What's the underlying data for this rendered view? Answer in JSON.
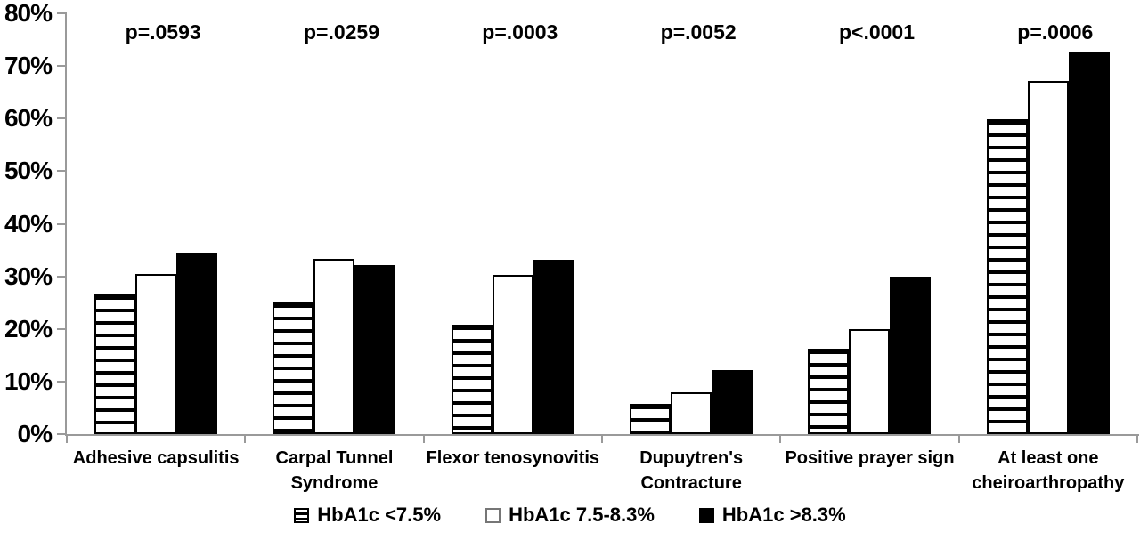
{
  "colors": {
    "background": "#ffffff",
    "text": "#000000",
    "axis": "#9a9a9a",
    "bar_black": "#000000",
    "bar_white": "#ffffff",
    "bar_stripe": "#000000"
  },
  "chart_data": {
    "type": "bar",
    "title": "",
    "xlabel": "",
    "ylabel": "",
    "grid": false,
    "legend_position": "bottom",
    "ylim": [
      0,
      80
    ],
    "ytick_step": 10,
    "ytick_labels": [
      "0%",
      "10%",
      "20%",
      "30%",
      "40%",
      "50%",
      "60%",
      "70%",
      "80%"
    ],
    "categories": [
      "Adhesive capsulitis",
      "Carpal Tunnel\nSyndrome",
      "Flexor tenosynovitis",
      "Dupuytren's\nContracture",
      "Positive prayer sign",
      "At least one\ncheiroarthropathy"
    ],
    "p_values": [
      "p=.0593",
      "p=.0259",
      "p=.0003",
      "p=.0052",
      "p<.0001",
      "p=.0006"
    ],
    "series": [
      {
        "name": "HbA1c <7.5%",
        "pattern": "striped",
        "values": [
          26.6,
          25.1,
          20.8,
          5.8,
          16.3,
          59.8
        ]
      },
      {
        "name": "HbA1c 7.5-8.3%",
        "pattern": "white",
        "values": [
          30.4,
          33.3,
          30.3,
          7.9,
          20.0,
          67.2
        ]
      },
      {
        "name": "HbA1c >8.3%",
        "pattern": "black",
        "values": [
          34.5,
          32.2,
          33.1,
          12.1,
          30.0,
          72.5
        ]
      }
    ]
  }
}
